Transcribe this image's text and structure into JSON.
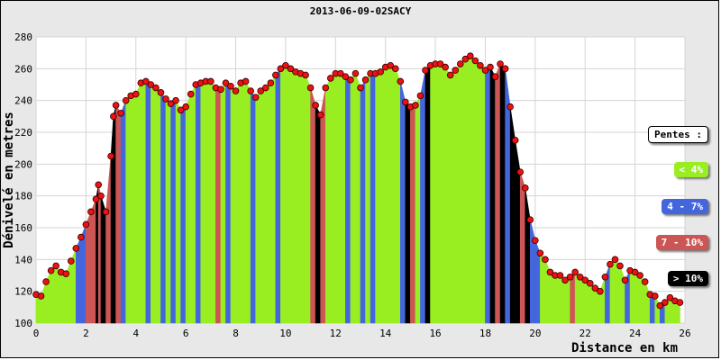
{
  "chart_data": {
    "type": "area",
    "title": "2013-06-09-02SACY",
    "xlabel": "Distance en km",
    "ylabel": "Dénivelé en metres",
    "xlim": [
      0,
      26
    ],
    "ylim": [
      100,
      280
    ],
    "xticks": [
      0,
      2,
      4,
      6,
      8,
      10,
      12,
      14,
      16,
      18,
      20,
      22,
      24,
      26
    ],
    "yticks": [
      100,
      120,
      140,
      160,
      180,
      200,
      220,
      240,
      260,
      280
    ],
    "grid": true,
    "legend_title": "Pentes :",
    "legend_position": "right",
    "legend": [
      {
        "label": "< 4%",
        "color": "#99ee22"
      },
      {
        "label": "4 - 7%",
        "color": "#4466dd"
      },
      {
        "label": "7 - 10%",
        "color": "#cc5555"
      },
      {
        "label": "> 10%",
        "color": "#000000"
      }
    ],
    "series": [
      {
        "x": [
          0.0,
          0.2,
          0.4,
          0.6,
          0.8,
          1.0,
          1.2,
          1.4,
          1.6,
          1.8,
          2.0,
          2.2,
          2.4,
          2.5,
          2.6,
          2.8,
          3.0,
          3.1,
          3.2,
          3.4,
          3.6,
          3.8,
          4.0,
          4.2,
          4.4,
          4.6,
          4.8,
          5.0,
          5.2,
          5.4,
          5.6,
          5.8,
          6.0,
          6.2,
          6.4,
          6.6,
          6.8,
          7.0,
          7.2,
          7.4,
          7.6,
          7.8,
          8.0,
          8.2,
          8.4,
          8.6,
          8.8,
          9.0,
          9.2,
          9.4,
          9.6,
          9.8,
          10.0,
          10.2,
          10.4,
          10.6,
          10.8,
          11.0,
          11.2,
          11.4,
          11.6,
          11.8,
          12.0,
          12.2,
          12.4,
          12.6,
          12.8,
          13.0,
          13.2,
          13.4,
          13.6,
          13.8,
          14.0,
          14.2,
          14.4,
          14.6,
          14.8,
          15.0,
          15.2,
          15.4,
          15.6,
          15.8,
          16.0,
          16.2,
          16.4,
          16.6,
          16.8,
          17.0,
          17.2,
          17.4,
          17.6,
          17.8,
          18.0,
          18.2,
          18.4,
          18.6,
          18.8,
          19.0,
          19.2,
          19.4,
          19.6,
          19.8,
          20.0,
          20.2,
          20.4,
          20.6,
          20.8,
          21.0,
          21.2,
          21.4,
          21.6,
          21.8,
          22.0,
          22.2,
          22.4,
          22.6,
          22.8,
          23.0,
          23.2,
          23.4,
          23.6,
          23.8,
          24.0,
          24.2,
          24.4,
          24.6,
          24.8,
          25.0,
          25.2,
          25.4,
          25.6,
          25.8
        ],
        "y": [
          118,
          117,
          126,
          133,
          136,
          132,
          131,
          139,
          147,
          154,
          162,
          170,
          178,
          187,
          180,
          170,
          205,
          230,
          237,
          232,
          240,
          243,
          244,
          251,
          252,
          250,
          248,
          245,
          241,
          238,
          240,
          234,
          236,
          244,
          250,
          251,
          252,
          252,
          248,
          247,
          251,
          249,
          246,
          251,
          252,
          246,
          242,
          246,
          248,
          251,
          256,
          260,
          262,
          260,
          258,
          257,
          256,
          248,
          237,
          231,
          248,
          254,
          257,
          257,
          255,
          253,
          257,
          248,
          253,
          257,
          257,
          258,
          261,
          262,
          260,
          252,
          239,
          236,
          237,
          243,
          259,
          262,
          263,
          263,
          261,
          256,
          259,
          263,
          266,
          268,
          265,
          262,
          259,
          261,
          255,
          263,
          260,
          236,
          215,
          195,
          185,
          165,
          152,
          144,
          140,
          132,
          130,
          130,
          127,
          129,
          132,
          129,
          127,
          125,
          122,
          120,
          129,
          137,
          140,
          136,
          127,
          133,
          132,
          130,
          126,
          118,
          117,
          111,
          113,
          116,
          114,
          113
        ],
        "slope_class": [
          0,
          0,
          0,
          0,
          0,
          0,
          0,
          0,
          1,
          1,
          2,
          2,
          3,
          2,
          3,
          2,
          3,
          3,
          2,
          1,
          0,
          0,
          0,
          0,
          1,
          0,
          0,
          1,
          0,
          1,
          0,
          1,
          0,
          0,
          1,
          0,
          0,
          0,
          2,
          0,
          1,
          0,
          0,
          0,
          0,
          1,
          0,
          0,
          0,
          0,
          1,
          0,
          0,
          0,
          0,
          0,
          0,
          2,
          3,
          2,
          0,
          0,
          0,
          0,
          1,
          0,
          0,
          1,
          0,
          1,
          0,
          0,
          0,
          0,
          0,
          1,
          3,
          2,
          0,
          1,
          3,
          0,
          0,
          0,
          0,
          0,
          0,
          0,
          0,
          0,
          0,
          0,
          1,
          3,
          2,
          3,
          1,
          3,
          3,
          2,
          3,
          1,
          1,
          0,
          0,
          0,
          0,
          0,
          0,
          2,
          0,
          0,
          0,
          0,
          0,
          0,
          1,
          0,
          0,
          0,
          1,
          0,
          0,
          0,
          0,
          1,
          0,
          1,
          0,
          0,
          0,
          0
        ]
      }
    ]
  }
}
